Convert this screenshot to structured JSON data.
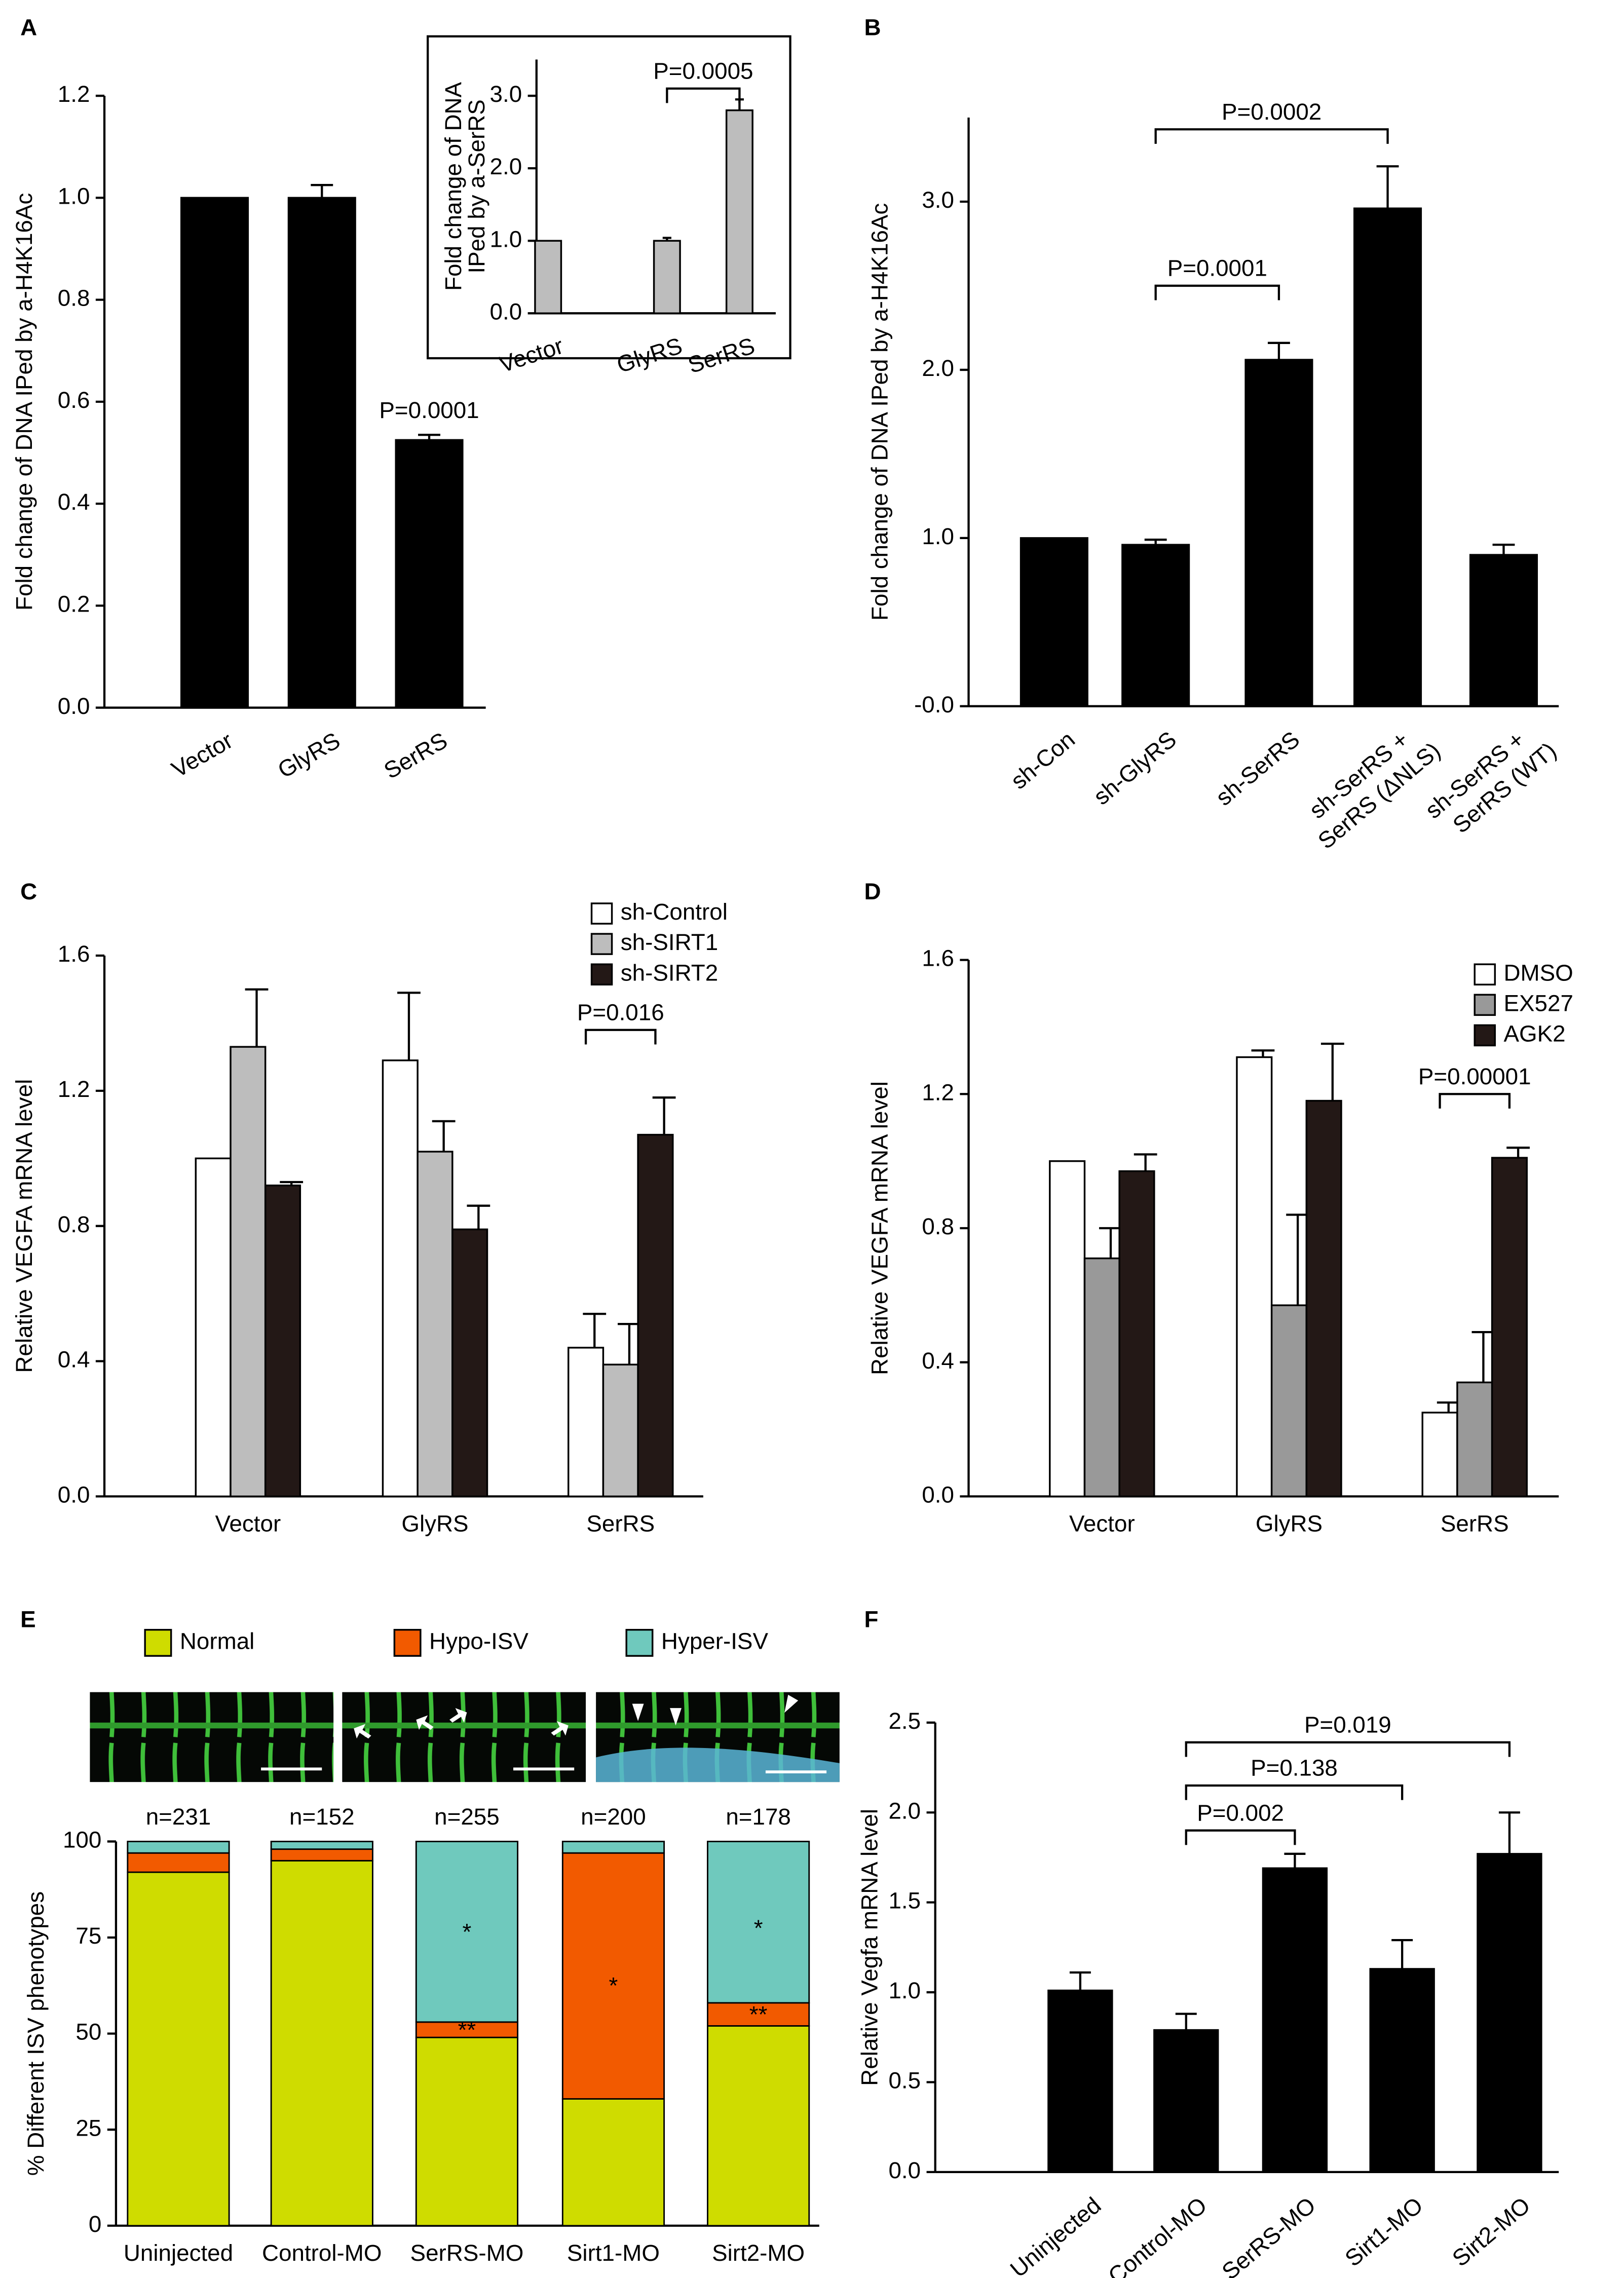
{
  "chart_data": [
    {
      "type": "bar",
      "panel": "A",
      "ylabel": "Fold change of DNA IPed by a-H4K16Ac",
      "categories": [
        "Vector",
        "GlyRS",
        "SerRS"
      ],
      "values": [
        1.0,
        1.0,
        0.525
      ],
      "errors": [
        0,
        0.025,
        0.01
      ],
      "color": "#000000",
      "ylim": [
        0,
        1.2
      ],
      "yticks": [
        {
          "value": 0,
          "label": "0.0"
        },
        0.2,
        0.4,
        0.6,
        0.8,
        {
          "value": 1,
          "label": "1.0"
        },
        1.2
      ],
      "annotations": [
        {
          "text": "P=0.0001",
          "category": 2,
          "y": 0.58
        }
      ]
    },
    {
      "type": "bar",
      "ylabel": [
        "Fold change of DNA",
        "IPed by a-SerRS"
      ],
      "categories": [
        "Vector",
        "GlyRS",
        "SerRS"
      ],
      "values": [
        1.0,
        1.0,
        2.8
      ],
      "errors": [
        0,
        0.04,
        0.15
      ],
      "color": "#bdbdbd",
      "ylim": [
        0,
        3.5
      ],
      "yticks": [
        {
          "value": 0,
          "label": "0.0"
        },
        {
          "value": 1,
          "label": "1.0"
        },
        {
          "value": 2,
          "label": "2.0"
        },
        {
          "value": 3,
          "label": "3.0"
        }
      ],
      "brackets": [
        {
          "label": "P=0.0005",
          "from": 1,
          "to": 2,
          "y": 3.1
        }
      ]
    },
    {
      "type": "bar",
      "panel": "B",
      "ylabel": "Fold change of DNA IPed by a-H4K16Ac",
      "categories": [
        "sh-Con",
        "sh-GlyRS",
        "sh-SerRS",
        "sh-SerRS +\nSerRS (ΔNLS)",
        "sh-SerRS  +\nSerRS (WT)"
      ],
      "values": [
        1.0,
        0.96,
        2.06,
        2.96,
        0.9
      ],
      "errors": [
        0,
        0.03,
        0.1,
        0.25,
        0.06
      ],
      "color": "#000000",
      "ylim": [
        0,
        3.5
      ],
      "yticks": [
        {
          "value": 0,
          "label": "-0.0"
        },
        {
          "value": 1,
          "label": "1.0"
        },
        {
          "value": 2,
          "label": "2.0"
        },
        {
          "value": 3,
          "label": "3.0"
        }
      ],
      "brackets": [
        {
          "label": "P=0.0001",
          "from": 1,
          "to": 2,
          "y": 2.5
        },
        {
          "label": "P=0.0002",
          "from": 1,
          "to": 3,
          "y": 3.43
        }
      ]
    },
    {
      "type": "bar",
      "panel": "C",
      "ylabel": "Relative VEGFA mRNA level",
      "legend": "upper right",
      "categories": [
        "Vector",
        "GlyRS",
        "SerRS"
      ],
      "series": [
        {
          "name": "sh-Control",
          "color": "#ffffff",
          "values": [
            1.0,
            1.29,
            0.44
          ],
          "errors": [
            0,
            0.2,
            0.1
          ]
        },
        {
          "name": "sh-SIRT1",
          "color": "#bdbdbd",
          "values": [
            1.33,
            1.02,
            0.39
          ],
          "errors": [
            0.17,
            0.09,
            0.12
          ]
        },
        {
          "name": "sh-SIRT2",
          "color": "#231816",
          "values": [
            0.92,
            0.79,
            1.07
          ],
          "errors": [
            0.01,
            0.07,
            0.11
          ]
        }
      ],
      "ylim": [
        0,
        1.6
      ],
      "yticks": [
        {
          "value": 0,
          "label": "0.0"
        },
        0.4,
        0.8,
        1.2,
        1.6
      ],
      "brackets": [
        {
          "label": "P=0.016",
          "category": 2,
          "from": 0,
          "to": 2,
          "y": 1.38
        }
      ]
    },
    {
      "type": "bar",
      "panel": "D",
      "ylabel": "Relative VEGFA mRNA level",
      "legend": "upper right",
      "categories": [
        "Vector",
        "GlyRS",
        "SerRS"
      ],
      "series": [
        {
          "name": "DMSO",
          "color": "#ffffff",
          "values": [
            1.0,
            1.31,
            0.25
          ],
          "errors": [
            0,
            0.02,
            0.03
          ]
        },
        {
          "name": "EX527",
          "color": "#999999",
          "values": [
            0.71,
            0.57,
            0.34
          ],
          "errors": [
            0.09,
            0.27,
            0.15
          ]
        },
        {
          "name": "AGK2",
          "color": "#231816",
          "values": [
            0.97,
            1.18,
            1.01
          ],
          "errors": [
            0.05,
            0.17,
            0.03
          ]
        }
      ],
      "ylim": [
        0,
        1.6
      ],
      "yticks": [
        {
          "value": 0,
          "label": "0.0"
        },
        0.4,
        0.8,
        1.2,
        1.6
      ],
      "brackets": [
        {
          "label": "P=0.00001",
          "category": 2,
          "from": 0,
          "to": 2,
          "y": 1.2
        }
      ]
    },
    {
      "type": "bar",
      "stacked": true,
      "panel": "E",
      "ylabel": "% Different ISV phenotypes",
      "legend": "top",
      "categories": [
        "Uninjected",
        "Control-MO",
        "SerRS-MO",
        "Sirt1-MO",
        "Sirt2-MO"
      ],
      "series": [
        {
          "name": "Normal",
          "color": "#cfdc00",
          "values": [
            92,
            95,
            49,
            33,
            52
          ]
        },
        {
          "name": "Hypo-ISV",
          "color": "#f25a00",
          "values": [
            5,
            3,
            4,
            64,
            6
          ]
        },
        {
          "name": "Hyper-ISV",
          "color": "#6fc9bd",
          "values": [
            3,
            2,
            47,
            3,
            42
          ]
        }
      ],
      "ylim": [
        0,
        100
      ],
      "yticks": [
        0,
        25,
        50,
        75,
        100
      ],
      "top_labels": [
        "n=231",
        "n=152",
        "n=255",
        "n=200",
        "n=178"
      ],
      "annotations": [
        {
          "text": "*",
          "category": 2,
          "y": 76
        },
        {
          "text": "**",
          "category": 2,
          "y": 50.5
        },
        {
          "text": "*",
          "category": 3,
          "y": 62
        },
        {
          "text": "*",
          "category": 4,
          "y": 77
        },
        {
          "text": "**",
          "category": 4,
          "y": 54.5
        }
      ]
    },
    {
      "type": "bar",
      "panel": "F",
      "ylabel": "Relative Vegfa mRNA level",
      "categories": [
        "Uninjected",
        "Control-MO",
        "SerRS-MO",
        "Sirt1-MO",
        "Sirt2-MO"
      ],
      "values": [
        1.01,
        0.79,
        1.69,
        1.13,
        1.77
      ],
      "errors": [
        0.1,
        0.09,
        0.08,
        0.16,
        0.23
      ],
      "color": "#000000",
      "ylim": [
        0,
        2.5
      ],
      "yticks": [
        {
          "value": 0,
          "label": "0.0"
        },
        0.5,
        {
          "value": 1,
          "label": "1.0"
        },
        1.5,
        {
          "value": 2,
          "label": "2.0"
        },
        2.5
      ],
      "brackets": [
        {
          "label": "P=0.002",
          "from": 1,
          "to": 2,
          "y": 1.9
        },
        {
          "label": "P=0.138",
          "from": 1,
          "to": 3,
          "y": 2.15
        },
        {
          "label": "P=0.019",
          "from": 1,
          "to": 4,
          "y": 2.39
        }
      ]
    }
  ]
}
